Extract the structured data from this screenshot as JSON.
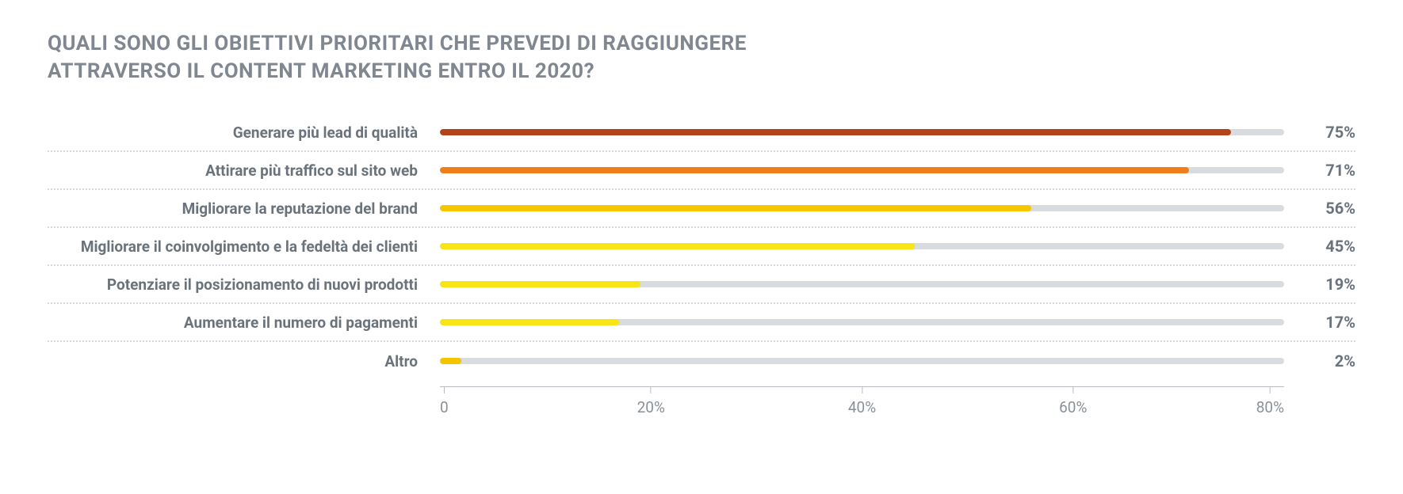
{
  "chart": {
    "type": "bar",
    "title_line1": "QUALI SONO GLI OBIETTIVI PRIORITARI CHE PREVEDI DI RAGGIUNGERE",
    "title_line2": "ATTRAVERSO IL CONTENT MARKETING ENTRO IL 2020?",
    "title_color": "#808790",
    "title_fontsize": 26,
    "label_color": "#6a737c",
    "label_fontsize": 19,
    "value_color": "#6a737c",
    "value_fontsize": 20,
    "track_color": "#d9dcdf",
    "axis_color": "#b8bcc2",
    "axis_label_color": "#8a9097",
    "axis_fontsize": 19,
    "background_color": "#ffffff",
    "xmax": 80,
    "ticks": [
      0,
      20,
      40,
      60,
      80
    ],
    "tick_labels": [
      "0",
      "20%",
      "40%",
      "60%",
      "80%"
    ],
    "rows": [
      {
        "label": "Generare più lead di qualità",
        "value": 75,
        "value_label": "75%",
        "color": "#b5431a"
      },
      {
        "label": "Attirare più traffico sul sito web",
        "value": 71,
        "value_label": "71%",
        "color": "#ef7d1a"
      },
      {
        "label": "Migliorare la reputazione del brand",
        "value": 56,
        "value_label": "56%",
        "color": "#f7c600"
      },
      {
        "label": "Migliorare il coinvolgimento e la fedeltà dei clienti",
        "value": 45,
        "value_label": "45%",
        "color": "#f7e516"
      },
      {
        "label": "Potenziare il posizionamento di nuovi prodotti",
        "value": 19,
        "value_label": "19%",
        "color": "#f7e516"
      },
      {
        "label": "Aumentare il numero di pagamenti",
        "value": 17,
        "value_label": "17%",
        "color": "#f7e516"
      },
      {
        "label": "Altro",
        "value": 2,
        "value_label": "2%",
        "color": "#f5c400"
      }
    ]
  }
}
